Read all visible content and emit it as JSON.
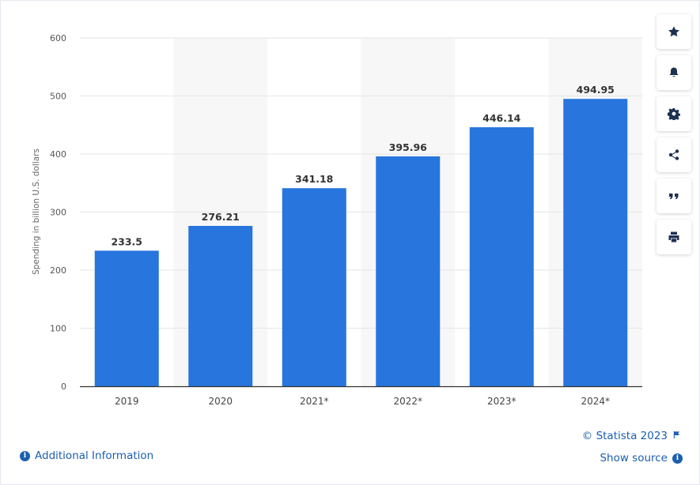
{
  "chart_data": {
    "type": "bar",
    "categories": [
      "2019",
      "2020",
      "2021*",
      "2022*",
      "2023*",
      "2024*"
    ],
    "values": [
      233.5,
      276.21,
      341.18,
      395.96,
      446.14,
      494.95
    ],
    "data_labels": [
      "233.5",
      "276.21",
      "341.18",
      "395.96",
      "446.14",
      "494.95"
    ],
    "title": "",
    "xlabel": "",
    "ylabel": "Spending in billion U.S. dollars",
    "ylim": [
      0,
      600
    ],
    "yticks": [
      0,
      100,
      200,
      300,
      400,
      500,
      600
    ],
    "grid": true,
    "bar_color": "#2775dd",
    "band_color": "#f7f7f8"
  },
  "toolbar": {
    "items": [
      {
        "icon": "star-icon"
      },
      {
        "icon": "bell-icon"
      },
      {
        "icon": "gear-icon"
      },
      {
        "icon": "share-icon"
      },
      {
        "icon": "quote-icon"
      },
      {
        "icon": "print-icon"
      }
    ]
  },
  "footer": {
    "additional_info": "Additional Information",
    "copyright": "© Statista 2023",
    "show_source": "Show source"
  }
}
